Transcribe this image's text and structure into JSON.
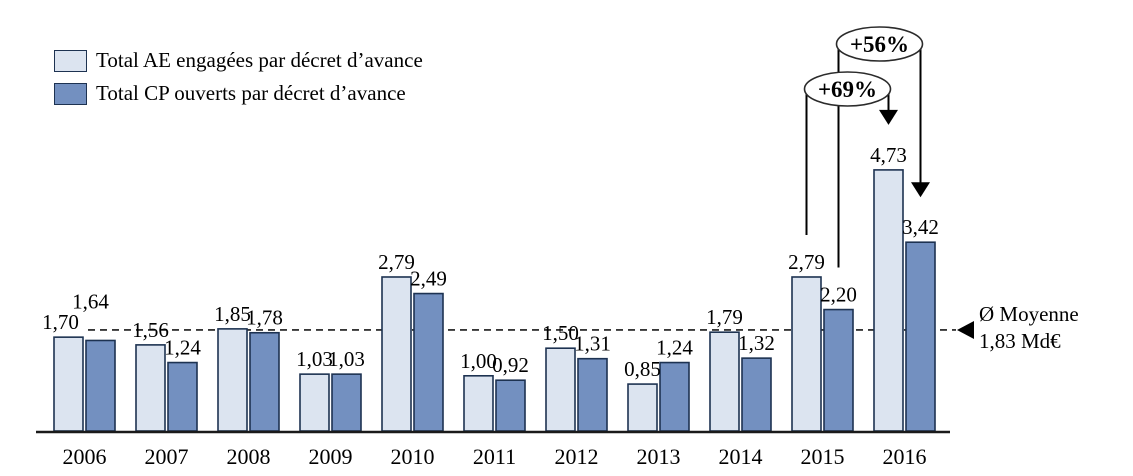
{
  "legend": {
    "items": [
      {
        "key": "ae",
        "label": "Total AE engagées par décret d’avance",
        "color": "#dce4f0"
      },
      {
        "key": "cp",
        "label": "Total CP ouverts par décret d’avance",
        "color": "#7390c0"
      }
    ]
  },
  "mean_label": {
    "line1": "Ø Moyenne",
    "line2": "1,83 Md€"
  },
  "chart_data": {
    "type": "bar",
    "title": "",
    "xlabel": "",
    "ylabel": "",
    "unit": "Md€",
    "categories": [
      "2006",
      "2007",
      "2008",
      "2009",
      "2010",
      "2011",
      "2012",
      "2013",
      "2014",
      "2015",
      "2016"
    ],
    "series": [
      {
        "key": "ae",
        "name": "Total AE engagées par décret d’avance",
        "color": "#dce4f0",
        "values": [
          1.7,
          1.56,
          1.85,
          1.03,
          2.79,
          1.0,
          1.5,
          0.85,
          1.79,
          2.79,
          4.73
        ],
        "labels": [
          "1,70",
          "1,56",
          "1,85",
          "1,03",
          "2,79",
          "1,00",
          "1,50",
          "0,85",
          "1,79",
          "2,79",
          "4,73"
        ]
      },
      {
        "key": "cp",
        "name": "Total CP ouverts par décret d’avance",
        "color": "#7390c0",
        "values": [
          1.64,
          1.24,
          1.78,
          1.03,
          2.49,
          0.92,
          1.31,
          1.24,
          1.32,
          2.2,
          3.42
        ],
        "labels": [
          "1,64",
          "1,24",
          "1,78",
          "1,03",
          "2,49",
          "0,92",
          "1,31",
          "1,24",
          "1,32",
          "2,20",
          "3,42"
        ]
      }
    ],
    "ylim": [
      0,
      5.0
    ],
    "grid": false,
    "legend_position": "top-left",
    "bar_border_color": "#1d3251",
    "average_line": {
      "value": 1.83,
      "label": "Ø Moyenne 1,83 Md€",
      "style": "dashed"
    },
    "annotations": [
      {
        "label": "+69%",
        "from_category": "2015",
        "from_series": "ae",
        "to_category": "2016",
        "to_series": "ae",
        "badge_cy": 89
      },
      {
        "label": "+56%",
        "from_category": "2015",
        "from_series": "cp",
        "to_category": "2016",
        "to_series": "cp",
        "badge_cy": 44
      }
    ],
    "label_offsets": {
      "ae": {
        "0": [
          -8,
          0
        ]
      },
      "cp": {
        "0": [
          -10,
          -24
        ]
      }
    }
  }
}
